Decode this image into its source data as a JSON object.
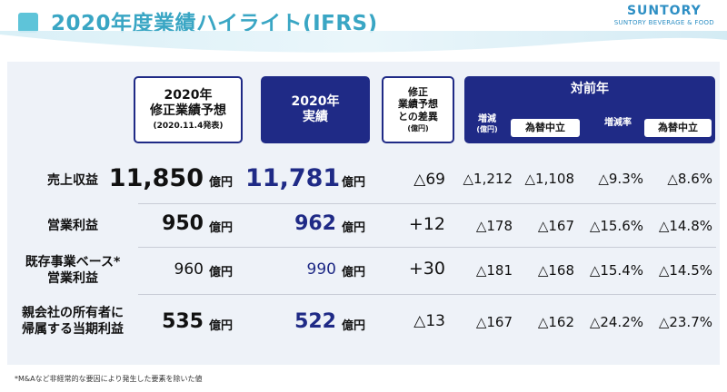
{
  "header": {
    "title": "2020年度業績ハイライト(IFRS)",
    "logo_main": "SUNTORY",
    "logo_sub": "SUNTORY BEVERAGE & FOOD"
  },
  "columns": {
    "forecast_title": "2020年\n修正業績予想",
    "forecast_sub": "(2020.11.4発表)",
    "actual_title": "2020年\n実績",
    "diff_title": "修正\n業績予想\nとの差異",
    "diff_sub": "(億円)",
    "yoy_title": "対前年",
    "yoy_change": "増減",
    "yoy_change_unit": "(億円)",
    "yoy_neutral_1": "為替中立",
    "yoy_rate": "増減率",
    "yoy_neutral_2": "為替中立"
  },
  "unit": "億円",
  "rows": [
    {
      "label": "売上収益",
      "forecast": "11,850",
      "actual": "11,781",
      "diff": "△69",
      "yoy_change": "△1,212",
      "yoy_change_neutral": "△1,108",
      "yoy_rate": "△9.3%",
      "yoy_rate_neutral": "△8.6%"
    },
    {
      "label": "営業利益",
      "forecast": "950",
      "actual": "962",
      "diff": "+12",
      "yoy_change": "△178",
      "yoy_change_neutral": "△167",
      "yoy_rate": "△15.6%",
      "yoy_rate_neutral": "△14.8%"
    },
    {
      "label": "既存事業ベース*\n営業利益",
      "forecast": "960",
      "actual": "990",
      "diff": "+30",
      "yoy_change": "△181",
      "yoy_change_neutral": "△168",
      "yoy_rate": "△15.4%",
      "yoy_rate_neutral": "△14.5%"
    },
    {
      "label": "親会社の所有者に\n帰属する当期利益",
      "forecast": "535",
      "actual": "522",
      "diff": "△13",
      "yoy_change": "△167",
      "yoy_change_neutral": "△162",
      "yoy_rate": "△24.2%",
      "yoy_rate_neutral": "△23.7%"
    }
  ],
  "footnote": "*M&Aなど非経常的な要因により発生した要素を除いた値",
  "colors": {
    "title": "#3aa6c4",
    "navy": "#1f2a86",
    "panel": "#eef2f8"
  }
}
